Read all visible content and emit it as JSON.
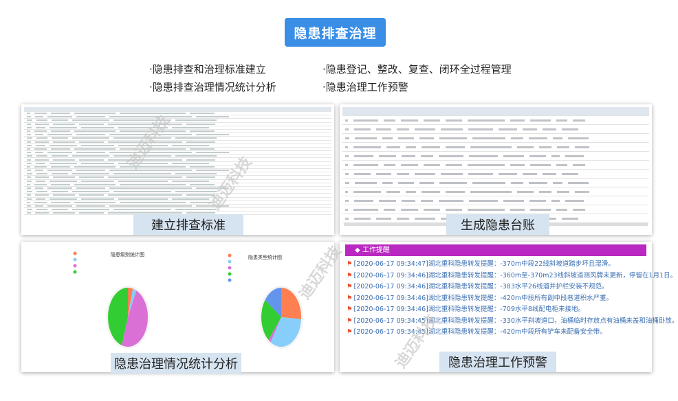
{
  "title": "隐患排查治理",
  "features": [
    "·隐患排查和治理标准建立",
    "·隐患登记、整改、复查、闭环全过程管理",
    "·隐患排查治理情况统计分析",
    "·隐患治理工作预警"
  ],
  "panels": {
    "standard": {
      "caption": "建立排查标准"
    },
    "ledger": {
      "caption": "生成隐患台账"
    },
    "stats": {
      "caption": "隐患治理情况统计分析",
      "chart_left_title": "隐患级别统计图",
      "chart_right_title": "隐患类型统计图"
    },
    "warning": {
      "caption": "隐患治理工作预警",
      "header": "工作提醒",
      "items": [
        "[2020-06-17 09:34:47]湖北重科隐患转发提醒：-370m中段22线斜坡道踏步坏且湿滑。",
        "[2020-06-17 09:34:46]湖北重科隐患转发提醒：-360m至-370m23线斜坡道测风牌未更新，停留在1月1日。",
        "[2020-06-17 09:34:46]湖北重科隐患转发提醒：-383水平26线溜井护栏安装不规范。",
        "[2020-06-17 09:34:46]湖北重科隐患转发提醒：-420m中段所有副中段巷道积水严重。",
        "[2020-06-17 09:34:46]湖北重科隐患转发提醒：-709水平8线配电柜未接地。",
        "[2020-06-17 09:34:45]湖北重科隐患转发提醒：-330水平斜坡道口，油桶临时存放点有油桶未盖和油桶卧放。",
        "[2020-06-17 09:34:45]湖北重科隐患转发提醒：-420m中段所有铲车未配备安全带。"
      ]
    }
  },
  "watermark": "迪迈科技",
  "chart_data": [
    {
      "type": "pie",
      "title": "隐患级别统计图",
      "values": [
        4,
        3,
        48,
        45
      ],
      "colors": [
        "#ff7f50",
        "#87cefa",
        "#da70d6",
        "#32cd32"
      ]
    },
    {
      "type": "pie",
      "title": "隐患类型统计图",
      "values": [
        26,
        33,
        2,
        24,
        15
      ],
      "colors": [
        "#ff7f50",
        "#87cefa",
        "#da70d6",
        "#32cd32",
        "#6495ed"
      ]
    }
  ]
}
